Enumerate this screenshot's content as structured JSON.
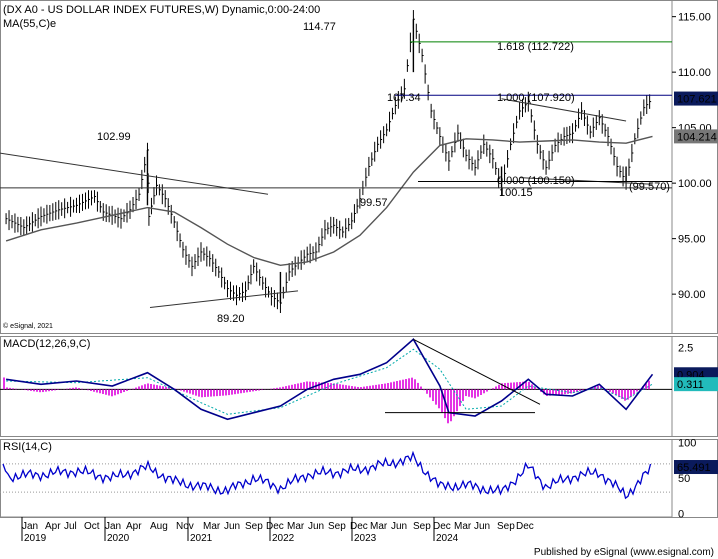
{
  "header": {
    "title": "(DX A0 - US DOLLAR INDEX FUTURES,W) Dynamic,0:00-24:00",
    "ma_label": "MA(55,C)e"
  },
  "footer": {
    "watermark": "© eSignal, 2021",
    "published": "Published by eSignal (www.esignal.com)"
  },
  "colors": {
    "price": "#000000",
    "ma": "#555555",
    "macd": "#00008b",
    "signal": "#00aaaa",
    "hist": "#dd00dd",
    "rsi": "#0000cc",
    "fib_green": "#008000",
    "fib_blue": "#000080",
    "tag_bg": "#0a1a5c"
  },
  "chart_data": [
    {
      "type": "line",
      "panel": "price",
      "title": "(DX A0 - US DOLLAR INDEX FUTURES,W) Dynamic,0:00-24:00",
      "ylim": [
        86.5,
        116.5
      ],
      "yticks": [
        90,
        95,
        100,
        105,
        110,
        115
      ],
      "ytick_labels": [
        "90.00",
        "95.00",
        "100.00",
        "105.00",
        "110.00",
        "115.00"
      ],
      "x_time_range": [
        "2018-11",
        "2024-12"
      ],
      "series": [
        {
          "name": "",
          "style": "ohlc-bars",
          "points": [
            [
              "2018-11",
              96.8
            ],
            [
              "2019-01",
              96.0
            ],
            [
              "2019-03",
              97.0
            ],
            [
              "2019-05",
              97.6
            ],
            [
              "2019-07",
              98.0
            ],
            [
              "2019-09",
              98.8
            ],
            [
              "2019-10",
              97.4
            ],
            [
              "2019-12",
              96.8
            ],
            [
              "2020-01",
              97.6
            ],
            [
              "2020-02",
              99.0
            ],
            [
              "2020-03",
              102.99
            ],
            [
              "2020-03-20",
              97.0
            ],
            [
              "2020-04",
              99.8
            ],
            [
              "2020-05",
              98.6
            ],
            [
              "2020-06",
              96.5
            ],
            [
              "2020-07",
              94.0
            ],
            [
              "2020-08",
              92.5
            ],
            [
              "2020-09",
              93.8
            ],
            [
              "2020-10",
              93.2
            ],
            [
              "2020-11",
              92.0
            ],
            [
              "2020-12",
              90.5
            ],
            [
              "2021-01",
              89.9
            ],
            [
              "2021-02",
              90.3
            ],
            [
              "2021-03",
              92.5
            ],
            [
              "2021-04",
              91.0
            ],
            [
              "2021-05",
              89.8
            ],
            [
              "2021-06",
              89.2
            ],
            [
              "2021-07",
              92.0
            ],
            [
              "2021-08",
              92.8
            ],
            [
              "2021-09",
              93.6
            ],
            [
              "2021-10",
              93.8
            ],
            [
              "2021-11",
              95.8
            ],
            [
              "2021-12",
              96.2
            ],
            [
              "2022-01",
              95.6
            ],
            [
              "2022-02",
              96.6
            ],
            [
              "2022-03",
              98.6
            ],
            [
              "2022-04",
              101.5
            ],
            [
              "2022-05",
              103.5
            ],
            [
              "2022-06",
              104.8
            ],
            [
              "2022-07",
              107.0
            ],
            [
              "2022-08",
              108.5
            ],
            [
              "2022-09",
              114.77
            ],
            [
              "2022-10",
              111.5
            ],
            [
              "2022-11",
              106.5
            ],
            [
              "2022-12",
              104.2
            ],
            [
              "2023-01",
              102.0
            ],
            [
              "2023-02",
              104.5
            ],
            [
              "2023-03",
              102.5
            ],
            [
              "2023-04",
              101.4
            ],
            [
              "2023-05",
              103.5
            ],
            [
              "2023-06",
              102.2
            ],
            [
              "2023-07",
              99.57
            ],
            [
              "2023-08",
              103.5
            ],
            [
              "2023-09",
              106.5
            ],
            [
              "2023-10",
              107.34
            ],
            [
              "2023-11",
              103.5
            ],
            [
              "2023-12",
              101.4
            ],
            [
              "2024-01",
              103.4
            ],
            [
              "2024-02",
              104.2
            ],
            [
              "2024-03",
              104.5
            ],
            [
              "2024-04",
              106.5
            ],
            [
              "2024-05",
              104.6
            ],
            [
              "2024-06",
              105.9
            ],
            [
              "2024-07",
              104.2
            ],
            [
              "2024-08",
              101.5
            ],
            [
              "2024-09",
              100.15
            ],
            [
              "2024-10",
              104.0
            ],
            [
              "2024-11",
              106.8
            ],
            [
              "2024-12",
              107.621
            ]
          ]
        },
        {
          "name": "MA(55,C)e",
          "points": [
            [
              "2018-11",
              94.8
            ],
            [
              "2019-03",
              95.8
            ],
            [
              "2019-07",
              96.4
            ],
            [
              "2019-11",
              97.1
            ],
            [
              "2020-03",
              97.8
            ],
            [
              "2020-06",
              97.4
            ],
            [
              "2020-09",
              96.0
            ],
            [
              "2020-12",
              94.5
            ],
            [
              "2021-03",
              93.3
            ],
            [
              "2021-06",
              92.6
            ],
            [
              "2021-09",
              92.9
            ],
            [
              "2021-12",
              93.8
            ],
            [
              "2022-03",
              95.3
            ],
            [
              "2022-06",
              97.8
            ],
            [
              "2022-09",
              101.0
            ],
            [
              "2022-12",
              103.4
            ],
            [
              "2023-03",
              104.0
            ],
            [
              "2023-06",
              103.9
            ],
            [
              "2023-09",
              103.7
            ],
            [
              "2023-12",
              103.8
            ],
            [
              "2024-03",
              103.9
            ],
            [
              "2024-06",
              103.7
            ],
            [
              "2024-09",
              103.6
            ],
            [
              "2024-12",
              104.214
            ]
          ]
        }
      ],
      "annotations": [
        {
          "text": "102.99",
          "at": [
            "2020-03",
            102.99
          ]
        },
        {
          "text": "89.20",
          "at": [
            "2021-06",
            89.2
          ]
        },
        {
          "text": "114.77",
          "at": [
            "2022-09",
            114.77
          ]
        },
        {
          "text": "107.34",
          "at": [
            "2023-10",
            107.34
          ]
        },
        {
          "text": "99.57",
          "at": [
            "2023-07",
            99.57
          ]
        },
        {
          "text": "100.15",
          "at": [
            "2024-09",
            100.15
          ]
        },
        {
          "text": "1.618 (112.722)",
          "level": 112.722
        },
        {
          "text": "1.000 (107.920)",
          "level": 107.92
        },
        {
          "text": "0.000 (100.150)",
          "level": 100.15
        },
        {
          "text": "(99.570)",
          "level": 99.57
        }
      ],
      "last_value_tags": [
        "107.621",
        "104.214"
      ]
    },
    {
      "type": "line",
      "panel": "macd",
      "title": "MACD(12,26,9,C)",
      "ylim": [
        -2.8,
        3.2
      ],
      "yticks": [
        2.5
      ],
      "series": [
        {
          "name": "MACD",
          "points": [
            [
              "2018-11",
              0.6
            ],
            [
              "2019-03",
              0.3
            ],
            [
              "2019-07",
              0.5
            ],
            [
              "2019-11",
              0.2
            ],
            [
              "2020-03",
              1.0
            ],
            [
              "2020-06",
              0.0
            ],
            [
              "2020-09",
              -1.2
            ],
            [
              "2020-12",
              -1.8
            ],
            [
              "2021-03",
              -1.4
            ],
            [
              "2021-06",
              -1.0
            ],
            [
              "2021-09",
              0.0
            ],
            [
              "2021-12",
              0.6
            ],
            [
              "2022-03",
              0.9
            ],
            [
              "2022-06",
              1.6
            ],
            [
              "2022-09",
              3.0
            ],
            [
              "2022-12",
              0.2
            ],
            [
              "2023-01",
              -1.4
            ],
            [
              "2023-04",
              -1.6
            ],
            [
              "2023-07",
              -0.7
            ],
            [
              "2023-10",
              0.6
            ],
            [
              "2023-12",
              -0.3
            ],
            [
              "2024-03",
              -0.4
            ],
            [
              "2024-06",
              0.3
            ],
            [
              "2024-09",
              -1.2
            ],
            [
              "2024-12",
              0.904
            ]
          ]
        },
        {
          "name": "Signal",
          "points": [
            [
              "2018-11",
              0.5
            ],
            [
              "2019-07",
              0.4
            ],
            [
              "2020-03",
              0.7
            ],
            [
              "2020-09",
              -0.8
            ],
            [
              "2020-12",
              -1.5
            ],
            [
              "2021-06",
              -1.1
            ],
            [
              "2021-12",
              0.3
            ],
            [
              "2022-06",
              1.3
            ],
            [
              "2022-09",
              2.4
            ],
            [
              "2022-12",
              1.2
            ],
            [
              "2023-03",
              -1.2
            ],
            [
              "2023-07",
              -1.0
            ],
            [
              "2023-10",
              0.2
            ],
            [
              "2024-03",
              -0.2
            ],
            [
              "2024-06",
              0.1
            ],
            [
              "2024-09",
              -0.6
            ],
            [
              "2024-12",
              0.311
            ]
          ]
        }
      ],
      "last_value_tags": [
        "0.904",
        "0.311"
      ]
    },
    {
      "type": "line",
      "panel": "rsi",
      "title": "RSI(14,C)",
      "ylim": [
        -5,
        105
      ],
      "yticks": [
        0,
        50,
        100
      ],
      "series": [
        {
          "name": "RSI",
          "points": [
            [
              "2018-11",
              52
            ],
            [
              "2019-03",
              55
            ],
            [
              "2019-07",
              60
            ],
            [
              "2019-11",
              50
            ],
            [
              "2020-03",
              65
            ],
            [
              "2020-06",
              45
            ],
            [
              "2020-09",
              38
            ],
            [
              "2020-12",
              32
            ],
            [
              "2021-03",
              50
            ],
            [
              "2021-06",
              36
            ],
            [
              "2021-09",
              55
            ],
            [
              "2021-12",
              58
            ],
            [
              "2022-03",
              62
            ],
            [
              "2022-06",
              70
            ],
            [
              "2022-09",
              78
            ],
            [
              "2022-12",
              38
            ],
            [
              "2023-03",
              40
            ],
            [
              "2023-07",
              30
            ],
            [
              "2023-10",
              66
            ],
            [
              "2023-12",
              38
            ],
            [
              "2024-03",
              52
            ],
            [
              "2024-06",
              58
            ],
            [
              "2024-09",
              25
            ],
            [
              "2024-12",
              65.491
            ]
          ]
        }
      ],
      "last_value_tags": [
        "65.491"
      ]
    }
  ],
  "x_axis": {
    "months": [
      "Jan",
      "Apr",
      "Jul",
      "Oct",
      "Jan",
      "Apr",
      "Aug",
      "Nov",
      "Mar",
      "Jun",
      "Sep",
      "Dec",
      "Mar",
      "Jun",
      "Sep",
      "Dec",
      "Mar",
      "Jun",
      "Sep",
      "Dec",
      "Mar",
      "Jun",
      "Sep",
      "Dec"
    ],
    "years": [
      "2019",
      "2020",
      "2021",
      "2022",
      "2023",
      "2024"
    ]
  }
}
